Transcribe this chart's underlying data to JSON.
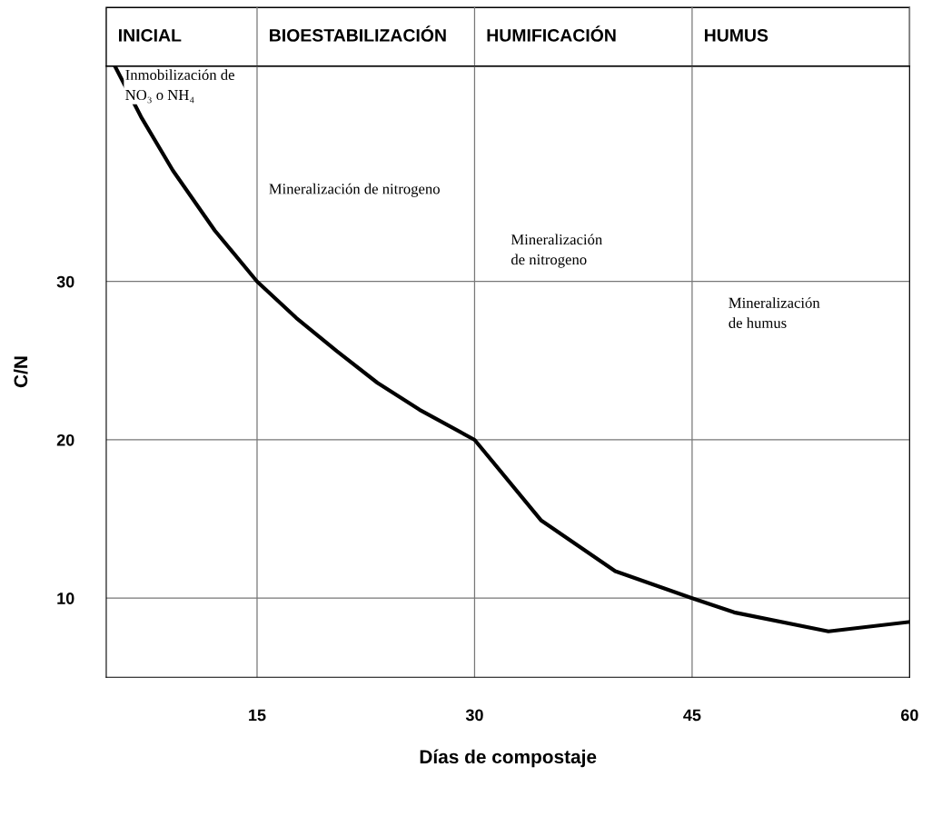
{
  "chart_data": {
    "type": "line",
    "xlabel": "Días de compostaje",
    "ylabel": "C/N",
    "x": [
      5.2,
      7.0,
      9.2,
      12.1,
      15,
      17.7,
      20.5,
      23.3,
      26.2,
      30,
      34.6,
      39.7,
      45,
      47.9,
      54.4,
      60
    ],
    "series": [
      {
        "color": "#000000",
        "values": [
          43.6,
          40.4,
          37.0,
          33.2,
          30,
          27.7,
          25.6,
          23.6,
          21.9,
          20,
          14.9,
          11.7,
          10,
          9.1,
          7.9,
          8.5
        ]
      }
    ],
    "xlim": [
      4.6,
      60
    ],
    "xticks": [
      15,
      30,
      45,
      60
    ],
    "ylim": [
      5,
      43.6
    ],
    "yticks": [
      10,
      20,
      30
    ],
    "grid": true,
    "marker": "none",
    "line_style": "solid",
    "annotations": [
      "INICIAL",
      "BIOESTABILIZACIÓN",
      "HUMIFICACIÓN",
      "HUMUS",
      "Inmobilización de\nNO₃ o NH₄",
      "Mineralización de nitrogeno",
      "Mineralización\nde nitrogeno",
      "Mineralización\nde humus"
    ]
  }
}
